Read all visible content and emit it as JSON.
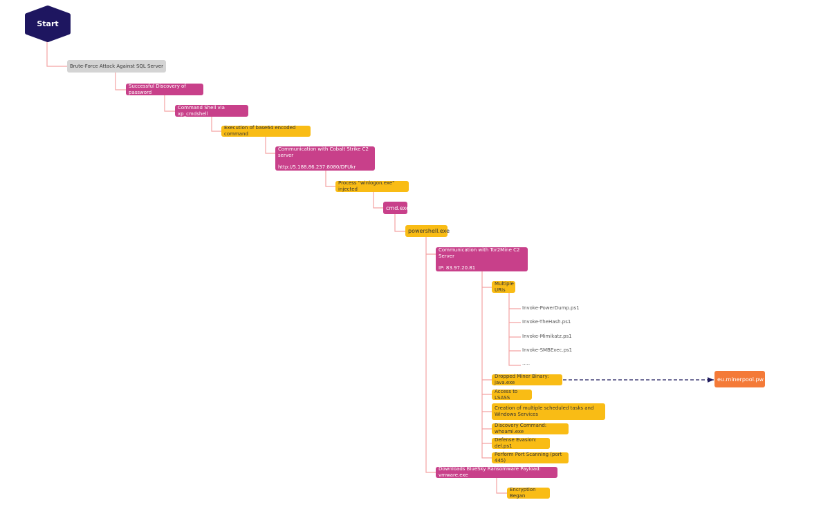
{
  "nodes": [
    {
      "label": "Start"
    },
    {
      "label": "Brute-Force Attack Against SQL Server"
    },
    {
      "label": "Successful Discovery of password"
    },
    {
      "label": "Command Shell via xp_cmdshell"
    },
    {
      "label": "Execution of base64 encoded command"
    },
    {
      "label": "Communication with Cobalt Strike C2 server",
      "detail": "http://5.188.86.237:8080/DFUkr"
    },
    {
      "label": "Process \"winlogon.exe\" injected"
    },
    {
      "label": "cmd.exe"
    },
    {
      "label": "powershell.exe"
    },
    {
      "label": "Communication with Tor2Mine C2 Server",
      "detail": "IP: 83.97.20.81"
    },
    {
      "label": "Multiple URIs"
    },
    {
      "label": "Dropped Miner Binary: java.exe"
    },
    {
      "label": "eu.minerpool.pw"
    },
    {
      "label": "Access to LSASS"
    },
    {
      "label": "Creation of multiple scheduled tasks and Windows Services"
    },
    {
      "label": "Discovery Command: whoami.exe"
    },
    {
      "label": "Defense Evasion: del.ps1"
    },
    {
      "label": "Perform Port Scanning (port 445)"
    },
    {
      "label": "Downloads BlueSky Ransomware Payload: vmware.exe"
    },
    {
      "label": "Encryption Began"
    }
  ],
  "uris": [
    "Invoke-PowerDump.ps1",
    "Invoke-TheHash.ps1",
    "Invoke-Mimikatz.ps1",
    "Invoke-SMBExec.ps1",
    "....."
  ]
}
